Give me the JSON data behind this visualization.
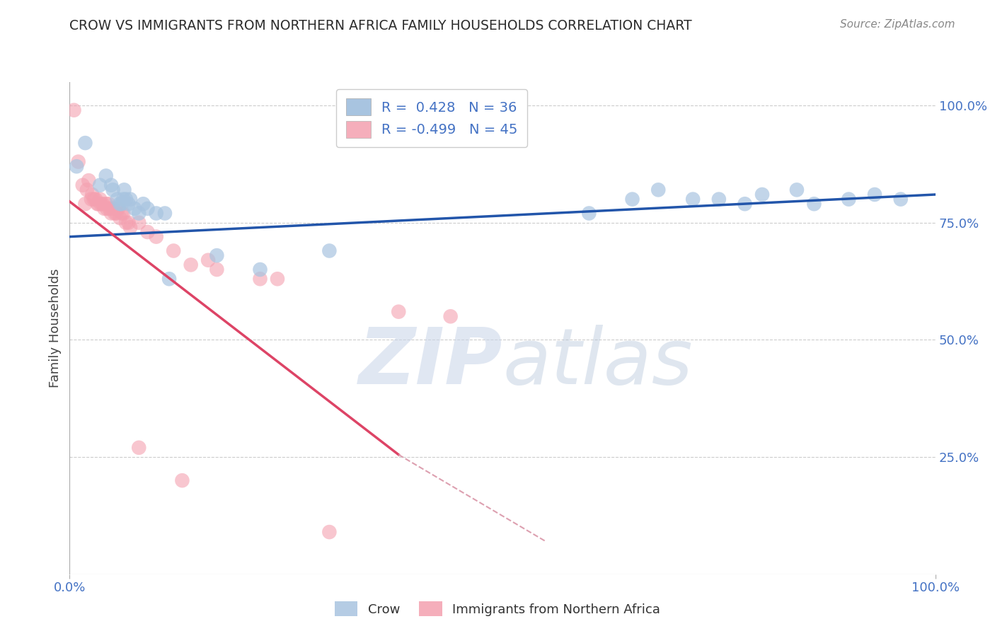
{
  "title": "CROW VS IMMIGRANTS FROM NORTHERN AFRICA FAMILY HOUSEHOLDS CORRELATION CHART",
  "source_text": "Source: ZipAtlas.com",
  "ylabel": "Family Households",
  "legend_entries": [
    {
      "label": "R =  0.428   N = 36",
      "color": "#a8c4e0"
    },
    {
      "label": "R = -0.499   N = 45",
      "color": "#f4b8c4"
    }
  ],
  "legend_x_labels": [
    "Crow",
    "Immigrants from Northern Africa"
  ],
  "blue_dot_color": "#a8c4e0",
  "pink_dot_color": "#f4a0b0",
  "line_blue": "#2255aa",
  "line_pink": "#dd4466",
  "line_pink_ext": "#dda0b0",
  "crow_points": [
    [
      0.008,
      0.87
    ],
    [
      0.018,
      0.92
    ],
    [
      0.035,
      0.83
    ],
    [
      0.042,
      0.85
    ],
    [
      0.048,
      0.83
    ],
    [
      0.05,
      0.82
    ],
    [
      0.055,
      0.8
    ],
    [
      0.058,
      0.79
    ],
    [
      0.06,
      0.79
    ],
    [
      0.062,
      0.8
    ],
    [
      0.063,
      0.82
    ],
    [
      0.065,
      0.8
    ],
    [
      0.068,
      0.79
    ],
    [
      0.07,
      0.8
    ],
    [
      0.075,
      0.78
    ],
    [
      0.08,
      0.77
    ],
    [
      0.085,
      0.79
    ],
    [
      0.09,
      0.78
    ],
    [
      0.1,
      0.77
    ],
    [
      0.11,
      0.77
    ],
    [
      0.115,
      0.63
    ],
    [
      0.17,
      0.68
    ],
    [
      0.22,
      0.65
    ],
    [
      0.3,
      0.69
    ],
    [
      0.6,
      0.77
    ],
    [
      0.65,
      0.8
    ],
    [
      0.68,
      0.82
    ],
    [
      0.72,
      0.8
    ],
    [
      0.75,
      0.8
    ],
    [
      0.78,
      0.79
    ],
    [
      0.8,
      0.81
    ],
    [
      0.84,
      0.82
    ],
    [
      0.86,
      0.79
    ],
    [
      0.9,
      0.8
    ],
    [
      0.93,
      0.81
    ],
    [
      0.96,
      0.8
    ]
  ],
  "immigrants_points": [
    [
      0.005,
      0.99
    ],
    [
      0.01,
      0.88
    ],
    [
      0.015,
      0.83
    ],
    [
      0.018,
      0.79
    ],
    [
      0.02,
      0.82
    ],
    [
      0.022,
      0.84
    ],
    [
      0.025,
      0.8
    ],
    [
      0.026,
      0.81
    ],
    [
      0.028,
      0.8
    ],
    [
      0.03,
      0.8
    ],
    [
      0.032,
      0.79
    ],
    [
      0.033,
      0.79
    ],
    [
      0.035,
      0.8
    ],
    [
      0.036,
      0.79
    ],
    [
      0.038,
      0.79
    ],
    [
      0.04,
      0.78
    ],
    [
      0.042,
      0.79
    ],
    [
      0.043,
      0.78
    ],
    [
      0.045,
      0.79
    ],
    [
      0.046,
      0.78
    ],
    [
      0.048,
      0.77
    ],
    [
      0.05,
      0.78
    ],
    [
      0.052,
      0.77
    ],
    [
      0.054,
      0.77
    ],
    [
      0.056,
      0.78
    ],
    [
      0.058,
      0.76
    ],
    [
      0.06,
      0.77
    ],
    [
      0.062,
      0.77
    ],
    [
      0.065,
      0.75
    ],
    [
      0.068,
      0.75
    ],
    [
      0.07,
      0.74
    ],
    [
      0.08,
      0.75
    ],
    [
      0.09,
      0.73
    ],
    [
      0.1,
      0.72
    ],
    [
      0.12,
      0.69
    ],
    [
      0.14,
      0.66
    ],
    [
      0.16,
      0.67
    ],
    [
      0.17,
      0.65
    ],
    [
      0.22,
      0.63
    ],
    [
      0.24,
      0.63
    ],
    [
      0.08,
      0.27
    ],
    [
      0.13,
      0.2
    ],
    [
      0.3,
      0.09
    ],
    [
      0.38,
      0.56
    ],
    [
      0.44,
      0.55
    ]
  ],
  "blue_line": [
    [
      0.0,
      0.72
    ],
    [
      1.0,
      0.81
    ]
  ],
  "pink_line_solid": [
    [
      0.0,
      0.795
    ],
    [
      0.38,
      0.255
    ]
  ],
  "pink_line_dashed": [
    [
      0.38,
      0.255
    ],
    [
      0.55,
      0.07
    ]
  ],
  "xmin": 0.0,
  "xmax": 1.0,
  "ymin": 0.0,
  "ymax": 1.05,
  "title_color": "#2c2c2c",
  "source_color": "#888888",
  "label_color": "#4472c4",
  "grid_color": "#cccccc",
  "background_color": "#ffffff"
}
